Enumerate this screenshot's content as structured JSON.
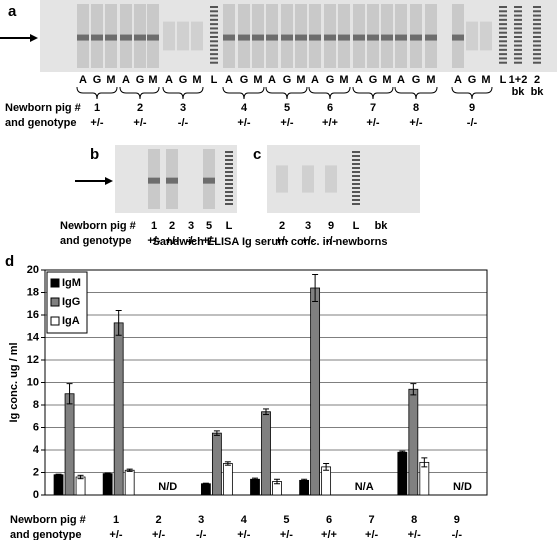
{
  "panels": {
    "a": {
      "label": "a",
      "lanes": [
        "A",
        "G",
        "M",
        "A",
        "G",
        "M",
        "A",
        "G",
        "M",
        "L",
        "A",
        "G",
        "M",
        "A",
        "G",
        "M",
        "A",
        "G",
        "M",
        "A",
        "G",
        "M",
        "A",
        "G",
        "M",
        "A",
        "G",
        "M",
        "L",
        "1+2",
        "2"
      ],
      "lanes_second_line": [
        "bk",
        "bk"
      ],
      "row_labels": [
        "Newborn pig #",
        "and genotype"
      ],
      "pigs": [
        "1",
        "2",
        "3",
        "4",
        "5",
        "6",
        "7",
        "8",
        "9"
      ],
      "genotypes": [
        "+/-",
        "+/-",
        "-/-",
        "+/-",
        "+/-",
        "+/+",
        "+/-",
        "+/-",
        "-/-"
      ]
    },
    "b": {
      "label": "b",
      "lanes": [
        "1",
        "2",
        "3",
        "5",
        "L"
      ],
      "genotypes": [
        "+/-",
        "+/-",
        "-/-",
        "+/-"
      ],
      "row_labels": [
        "Newborn pig #",
        "and genotype"
      ]
    },
    "c": {
      "label": "c",
      "lanes": [
        "2",
        "3",
        "9",
        "L",
        "bk"
      ],
      "genotypes": [
        "+/-",
        "+/-",
        "-/-"
      ]
    }
  },
  "chart_data": {
    "type": "bar",
    "panel_label": "d",
    "title": "Sandwich ELISA Ig serum conc. in newborns",
    "y_label": "Ig conc. ug / ml",
    "row_labels": [
      "Newborn pig #",
      "and genotype"
    ],
    "categories": [
      "1",
      "2",
      "3",
      "4",
      "5",
      "6",
      "7",
      "8",
      "9"
    ],
    "genotypes": [
      "+/-",
      "+/-",
      "-/-",
      "+/-",
      "+/-",
      "+/+",
      "+/-",
      "+/-",
      "-/-"
    ],
    "ylim": [
      0,
      20
    ],
    "yticks": [
      0,
      2,
      4,
      6,
      8,
      10,
      12,
      14,
      16,
      18,
      20
    ],
    "grid": true,
    "legend": "upper left",
    "series": [
      {
        "name": "IgM",
        "color": "#000000",
        "values": [
          1.8,
          1.9,
          null,
          1.0,
          1.4,
          1.3,
          null,
          3.8,
          null
        ],
        "errors": [
          0.05,
          0.05,
          null,
          0.05,
          0.1,
          0.1,
          null,
          0.1,
          null
        ]
      },
      {
        "name": "IgG",
        "color": "#808080",
        "values": [
          9.0,
          15.3,
          null,
          5.5,
          7.4,
          18.4,
          null,
          9.4,
          null
        ],
        "errors": [
          0.9,
          1.1,
          null,
          0.2,
          0.25,
          1.2,
          null,
          0.5,
          null
        ]
      },
      {
        "name": "IgA",
        "color": "#ffffff",
        "values": [
          1.6,
          2.2,
          null,
          2.8,
          1.2,
          2.5,
          null,
          2.9,
          null
        ],
        "errors": [
          0.15,
          0.1,
          null,
          0.15,
          0.2,
          0.3,
          null,
          0.4,
          null
        ]
      }
    ],
    "missing_labels": [
      null,
      null,
      "N/D",
      null,
      null,
      null,
      "N/A",
      null,
      "N/D"
    ]
  }
}
